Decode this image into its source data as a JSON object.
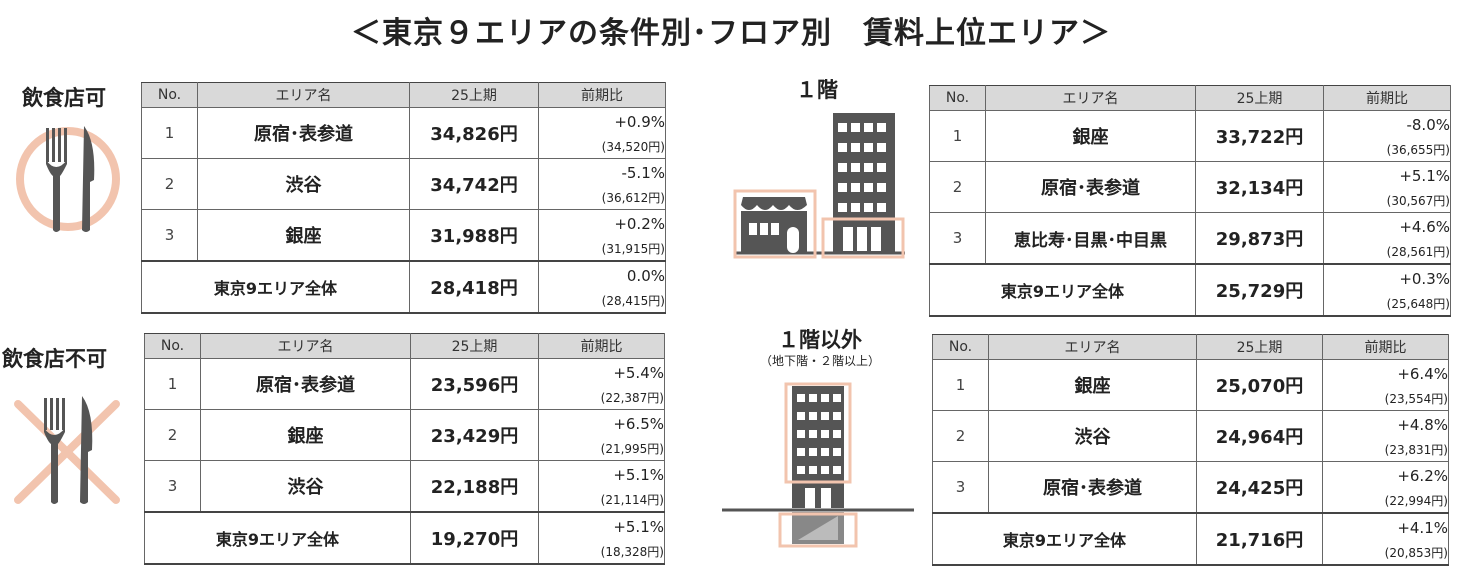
{
  "title": "＜東京９エリアの条件別･フロア別　賃料上位エリア＞",
  "colors": {
    "accent": "#f2c4ae",
    "building": "#555555",
    "header_bg": "#d9d9d9"
  },
  "categories": {
    "food_ok": {
      "label": "飲食店可",
      "icon": "fork-knife-circle-icon"
    },
    "food_ng": {
      "label": "飲食店不可",
      "icon": "fork-knife-crossed-icon"
    }
  },
  "floors": {
    "first": {
      "label": "１階",
      "icon": "storefront-building-icon"
    },
    "other": {
      "label": "１階以外",
      "sublabel": "（地下階・２階以上）",
      "icon": "basement-building-icon"
    }
  },
  "chart_data": [
    {
      "type": "table",
      "title": "飲食店可",
      "columns": [
        "No.",
        "エリア名",
        "25上期",
        "前期比"
      ],
      "rows": [
        {
          "no": "1",
          "area": "原宿･表参道",
          "rent": "34,826円",
          "change": "+0.9%",
          "prev": "(34,520円)"
        },
        {
          "no": "2",
          "area": "渋谷",
          "rent": "34,742円",
          "change": "-5.1%",
          "prev": "(36,612円)"
        },
        {
          "no": "3",
          "area": "銀座",
          "rent": "31,988円",
          "change": "+0.2%",
          "prev": "(31,915円)"
        }
      ],
      "total": {
        "label": "東京9エリア全体",
        "rent": "28,418円",
        "change": "0.0%",
        "prev": "(28,415円)"
      }
    },
    {
      "type": "table",
      "title": "飲食店不可",
      "columns": [
        "No.",
        "エリア名",
        "25上期",
        "前期比"
      ],
      "rows": [
        {
          "no": "1",
          "area": "原宿･表参道",
          "rent": "23,596円",
          "change": "+5.4%",
          "prev": "(22,387円)"
        },
        {
          "no": "2",
          "area": "銀座",
          "rent": "23,429円",
          "change": "+6.5%",
          "prev": "(21,995円)"
        },
        {
          "no": "3",
          "area": "渋谷",
          "rent": "22,188円",
          "change": "+5.1%",
          "prev": "(21,114円)"
        }
      ],
      "total": {
        "label": "東京9エリア全体",
        "rent": "19,270円",
        "change": "+5.1%",
        "prev": "(18,328円)"
      }
    },
    {
      "type": "table",
      "title": "１階",
      "columns": [
        "No.",
        "エリア名",
        "25上期",
        "前期比"
      ],
      "rows": [
        {
          "no": "1",
          "area": "銀座",
          "rent": "33,722円",
          "change": "-8.0%",
          "prev": "(36,655円)"
        },
        {
          "no": "2",
          "area": "原宿･表参道",
          "rent": "32,134円",
          "change": "+5.1%",
          "prev": "(30,567円)"
        },
        {
          "no": "3",
          "area": "恵比寿･目黒･中目黒",
          "rent": "29,873円",
          "change": "+4.6%",
          "prev": "(28,561円)"
        }
      ],
      "total": {
        "label": "東京9エリア全体",
        "rent": "25,729円",
        "change": "+0.3%",
        "prev": "(25,648円)"
      }
    },
    {
      "type": "table",
      "title": "１階以外",
      "columns": [
        "No.",
        "エリア名",
        "25上期",
        "前期比"
      ],
      "rows": [
        {
          "no": "1",
          "area": "銀座",
          "rent": "25,070円",
          "change": "+6.4%",
          "prev": "(23,554円)"
        },
        {
          "no": "2",
          "area": "渋谷",
          "rent": "24,964円",
          "change": "+4.8%",
          "prev": "(23,831円)"
        },
        {
          "no": "3",
          "area": "原宿･表参道",
          "rent": "24,425円",
          "change": "+6.2%",
          "prev": "(22,994円)"
        }
      ],
      "total": {
        "label": "東京9エリア全体",
        "rent": "21,716円",
        "change": "+4.1%",
        "prev": "(20,853円)"
      }
    }
  ]
}
